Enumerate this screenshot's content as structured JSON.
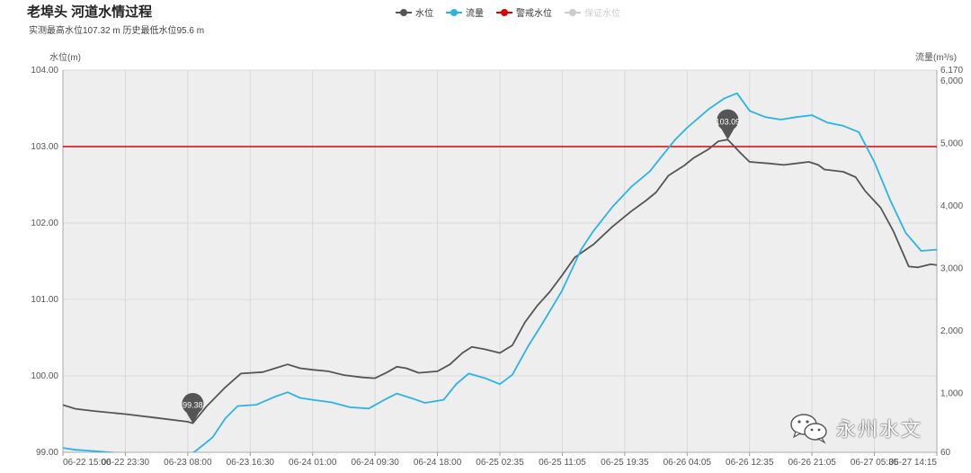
{
  "header": {
    "title": "老埠头  河道水情过程",
    "subtitle": "实测最高水位107.32 m 历史最低水位95.6 m"
  },
  "legend": [
    {
      "label": "水位",
      "color": "#555555",
      "active": true
    },
    {
      "label": "流量",
      "color": "#2bb3e6",
      "active": true
    },
    {
      "label": "警戒水位",
      "color": "#e00000",
      "active": true
    },
    {
      "label": "保证水位",
      "color": "#cccccc",
      "active": false
    }
  ],
  "watermark": {
    "text": "永州水文",
    "icon": "wechat-icon"
  },
  "colors": {
    "plot_bg": "#eeeeee",
    "grid": "#d9d9d9",
    "level": "#555555",
    "flow": "#2bb3e6",
    "warning": "#e00000",
    "marker": "#555555"
  },
  "chart_data": {
    "type": "line",
    "y_left": {
      "label": "水位(m)",
      "min": 99.0,
      "max": 104.0,
      "ticks": [
        "99.00",
        "100.00",
        "101.00",
        "102.00",
        "103.00",
        "104.00"
      ]
    },
    "y_right": {
      "label": "流量(m³/s)",
      "min": 60,
      "max": 6170,
      "ticks": [
        "60",
        "1,000",
        "2,000",
        "3,000",
        "4,000",
        "5,000",
        "6,000",
        "6,170"
      ]
    },
    "x_ticks": [
      "06-22 15:00",
      "06-22 23:30",
      "06-23 08:00",
      "06-23 16:30",
      "06-24 01:00",
      "06-24 09:30",
      "06-24 18:00",
      "06-25 02:35",
      "06-25 11:05",
      "06-25 19:35",
      "06-26 04:05",
      "06-26 12:35",
      "06-26 21:05",
      "06-27 05:35",
      "06-27 14:15"
    ],
    "warning_level": 103.0,
    "series": [
      {
        "name": "水位",
        "axis": "left",
        "points": [
          [
            0,
            99.62
          ],
          [
            0.2,
            99.57
          ],
          [
            0.5,
            99.54
          ],
          [
            1.0,
            99.5
          ],
          [
            1.5,
            99.45
          ],
          [
            2.0,
            99.4
          ],
          [
            2.08,
            99.38
          ],
          [
            2.3,
            99.6
          ],
          [
            2.6,
            99.85
          ],
          [
            2.85,
            100.03
          ],
          [
            3.2,
            100.05
          ],
          [
            3.4,
            100.1
          ],
          [
            3.6,
            100.15
          ],
          [
            3.8,
            100.1
          ],
          [
            4.0,
            100.08
          ],
          [
            4.25,
            100.06
          ],
          [
            4.5,
            100.01
          ],
          [
            4.8,
            99.98
          ],
          [
            5.0,
            99.97
          ],
          [
            5.2,
            100.05
          ],
          [
            5.35,
            100.12
          ],
          [
            5.5,
            100.1
          ],
          [
            5.7,
            100.04
          ],
          [
            6.0,
            100.06
          ],
          [
            6.2,
            100.15
          ],
          [
            6.4,
            100.3
          ],
          [
            6.55,
            100.38
          ],
          [
            6.75,
            100.35
          ],
          [
            7.0,
            100.3
          ],
          [
            7.2,
            100.4
          ],
          [
            7.4,
            100.7
          ],
          [
            7.6,
            100.92
          ],
          [
            7.8,
            101.1
          ],
          [
            8.0,
            101.32
          ],
          [
            8.2,
            101.55
          ],
          [
            8.5,
            101.72
          ],
          [
            8.8,
            101.95
          ],
          [
            9.1,
            102.15
          ],
          [
            9.35,
            102.3
          ],
          [
            9.5,
            102.4
          ],
          [
            9.7,
            102.62
          ],
          [
            9.95,
            102.75
          ],
          [
            10.1,
            102.85
          ],
          [
            10.35,
            102.97
          ],
          [
            10.5,
            103.07
          ],
          [
            10.65,
            103.09
          ],
          [
            10.85,
            102.92
          ],
          [
            11.0,
            102.8
          ],
          [
            11.3,
            102.78
          ],
          [
            11.55,
            102.76
          ],
          [
            11.75,
            102.78
          ],
          [
            11.95,
            102.8
          ],
          [
            12.1,
            102.76
          ],
          [
            12.2,
            102.7
          ],
          [
            12.5,
            102.67
          ],
          [
            12.7,
            102.6
          ],
          [
            12.85,
            102.42
          ],
          [
            13.1,
            102.2
          ],
          [
            13.3,
            101.9
          ],
          [
            13.55,
            101.43
          ],
          [
            13.7,
            101.42
          ],
          [
            13.9,
            101.46
          ],
          [
            14.1,
            101.44
          ],
          [
            14.4,
            101.47
          ],
          [
            14.5,
            101.5
          ]
        ]
      },
      {
        "name": "流量",
        "axis": "right",
        "points": [
          [
            0,
            130
          ],
          [
            0.2,
            100
          ],
          [
            0.5,
            80
          ],
          [
            1.0,
            40
          ],
          [
            1.5,
            20
          ],
          [
            2.0,
            20
          ],
          [
            2.1,
            60
          ],
          [
            2.4,
            300
          ],
          [
            2.6,
            600
          ],
          [
            2.8,
            800
          ],
          [
            3.1,
            820
          ],
          [
            3.4,
            950
          ],
          [
            3.6,
            1020
          ],
          [
            3.8,
            930
          ],
          [
            4.0,
            900
          ],
          [
            4.3,
            860
          ],
          [
            4.6,
            780
          ],
          [
            4.9,
            760
          ],
          [
            5.15,
            900
          ],
          [
            5.35,
            1000
          ],
          [
            5.6,
            920
          ],
          [
            5.8,
            850
          ],
          [
            6.1,
            900
          ],
          [
            6.3,
            1150
          ],
          [
            6.5,
            1320
          ],
          [
            6.75,
            1250
          ],
          [
            7.0,
            1150
          ],
          [
            7.2,
            1300
          ],
          [
            7.45,
            1750
          ],
          [
            7.7,
            2150
          ],
          [
            8.0,
            2650
          ],
          [
            8.3,
            3300
          ],
          [
            8.5,
            3600
          ],
          [
            8.8,
            3980
          ],
          [
            9.1,
            4300
          ],
          [
            9.4,
            4550
          ],
          [
            9.6,
            4800
          ],
          [
            9.8,
            5050
          ],
          [
            10.0,
            5250
          ],
          [
            10.35,
            5550
          ],
          [
            10.6,
            5720
          ],
          [
            10.8,
            5800
          ],
          [
            11.0,
            5520
          ],
          [
            11.25,
            5420
          ],
          [
            11.5,
            5380
          ],
          [
            11.75,
            5420
          ],
          [
            12.0,
            5450
          ],
          [
            12.25,
            5330
          ],
          [
            12.5,
            5280
          ],
          [
            12.75,
            5180
          ],
          [
            13.0,
            4700
          ],
          [
            13.25,
            4100
          ],
          [
            13.5,
            3570
          ],
          [
            13.75,
            3280
          ],
          [
            14.0,
            3300
          ],
          [
            14.25,
            3360
          ],
          [
            14.5,
            3400
          ]
        ]
      }
    ],
    "markers": [
      {
        "label": "99.38",
        "series": "水位",
        "x": 2.08,
        "y": 99.38
      },
      {
        "label": "103.09",
        "series": "水位",
        "x": 10.65,
        "y": 103.09
      }
    ]
  }
}
